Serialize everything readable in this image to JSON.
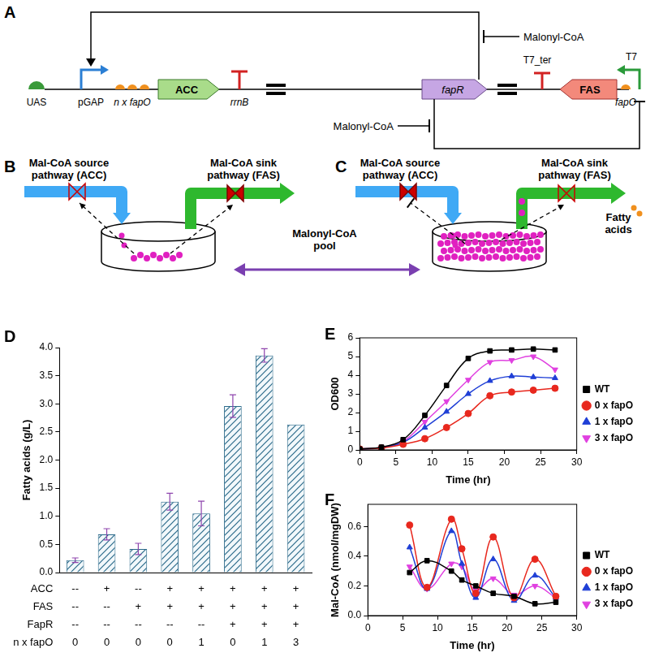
{
  "panels": {
    "A": {
      "label": "A",
      "parts": {
        "uas": "UAS",
        "promoter1": "pGAP",
        "operators": "n x fapO",
        "gene1": "ACC",
        "terminator1": "rrnB",
        "gene2": "fapR",
        "terminator2": "T7_ter",
        "gene3": "FAS",
        "operator2": "fapO",
        "promoter2": "T7"
      },
      "regulator_top": "Malonyl-CoA",
      "regulator_bottom": "Malonyl-CoA"
    },
    "B": {
      "label": "B",
      "source": "Mal-CoA source pathway (ACC)",
      "sink": "Mal-CoA sink pathway (FAS)"
    },
    "C": {
      "label": "C",
      "source": "Mal-CoA source pathway (ACC)",
      "sink": "Mal-CoA sink pathway (FAS)",
      "product": "Fatty acids"
    },
    "pool": "Malonyl-CoA pool"
  },
  "chart_data": [
    {
      "type": "bar",
      "panel_label": "D",
      "y_label": "Fatty acids (g/L)",
      "categories": [
        null,
        null,
        null,
        null,
        null,
        null,
        null,
        null
      ],
      "values": [
        0.22,
        0.68,
        0.42,
        1.26,
        1.05,
        2.96,
        3.86,
        2.63
      ],
      "errors": [
        0.04,
        0.1,
        0.1,
        0.15,
        0.22,
        0.2,
        0.12,
        null
      ],
      "color": "#2b6a8a",
      "ylim": [
        0,
        4
      ],
      "yticks": [
        {
          "value": 0,
          "label": "0.0"
        },
        {
          "value": 0.5,
          "label": "0.5"
        },
        {
          "value": 1,
          "label": "1.0"
        },
        {
          "value": 1.5,
          "label": "1.5"
        },
        {
          "value": 2,
          "label": "2.0"
        },
        {
          "value": 2.5,
          "label": "2.5"
        },
        {
          "value": 3,
          "label": "3.0"
        },
        {
          "value": 3.5,
          "label": "3.5"
        },
        {
          "value": 4,
          "label": "4.0"
        }
      ],
      "grid": false,
      "tick_labels": "y",
      "table": [
        {
          "label": "ACC",
          "values": [
            "--",
            "+",
            "--",
            "+",
            "+",
            "+",
            "+",
            "+"
          ]
        },
        {
          "label": "FAS",
          "values": [
            "--",
            "--",
            "+",
            "+",
            "+",
            "+",
            "+",
            "+"
          ]
        },
        {
          "label": "FapR",
          "values": [
            "--",
            "--",
            "--",
            "--",
            "--",
            "+",
            "+",
            "+"
          ]
        },
        {
          "label": "n x fapO",
          "values": [
            "0",
            "0",
            "0",
            "0",
            "1",
            "0",
            "1",
            "3"
          ]
        }
      ]
    },
    {
      "type": "line",
      "panel_label": "E",
      "x_label": "Time (hr)",
      "y_label": "OD600",
      "x": [
        0,
        3,
        6,
        9,
        12,
        15,
        18,
        21,
        24,
        27
      ],
      "series": [
        {
          "name": "WT",
          "color": "#000000",
          "marker": "square",
          "line_style": "solid",
          "values": [
            0.05,
            0.15,
            0.55,
            1.85,
            3.45,
            4.9,
            5.3,
            5.35,
            5.4,
            5.35
          ]
        },
        {
          "name": "0 x fapO",
          "color": "#e8281e",
          "marker": "circle",
          "line_style": "solid",
          "values": [
            0.05,
            0.1,
            0.3,
            0.6,
            1.2,
            1.95,
            2.9,
            3.1,
            3.2,
            3.3
          ]
        },
        {
          "name": "1 x fapO",
          "color": "#1f3fd6",
          "marker": "triangle",
          "line_style": "solid",
          "values": [
            0.05,
            0.12,
            0.4,
            1.2,
            2.05,
            3.0,
            3.7,
            3.95,
            3.9,
            3.85
          ]
        },
        {
          "name": "3 x fapO",
          "color": "#e040e0",
          "marker": "triangle_down",
          "line_style": "solid",
          "values": [
            0.05,
            0.12,
            0.45,
            1.5,
            2.6,
            3.75,
            4.7,
            4.8,
            5.0,
            4.3
          ]
        }
      ],
      "xlim": [
        0,
        30
      ],
      "xticks": [
        0,
        5,
        10,
        15,
        20,
        25,
        30
      ],
      "ylim": [
        0,
        6
      ],
      "yticks": [
        0,
        1,
        2,
        3,
        4,
        5,
        6
      ],
      "grid": false,
      "legend": "right"
    },
    {
      "type": "line",
      "panel_label": "F",
      "x_label": "Time (hr)",
      "y_label": "Mal-CoA (nmol/mgDW)",
      "x": [
        6,
        8.5,
        12,
        13.5,
        15.5,
        18,
        21,
        24,
        27
      ],
      "series": [
        {
          "name": "WT",
          "color": "#000000",
          "marker": "square",
          "line_style": "solid",
          "values": [
            0.29,
            0.37,
            0.3,
            0.24,
            0.2,
            0.15,
            0.13,
            0.08,
            0.09
          ]
        },
        {
          "name": "0 x fapO",
          "color": "#e8281e",
          "marker": "circle",
          "line_style": "solid",
          "values": [
            0.61,
            0.19,
            0.65,
            0.45,
            0.15,
            0.53,
            0.12,
            0.38,
            0.13
          ]
        },
        {
          "name": "1 x fapO",
          "color": "#1f3fd6",
          "marker": "triangle",
          "line_style": "solid",
          "values": [
            0.46,
            0.18,
            0.57,
            0.35,
            0.12,
            0.38,
            0.1,
            0.27,
            0.12
          ]
        },
        {
          "name": "3 x fapO",
          "color": "#e040e0",
          "marker": "triangle_down",
          "line_style": "solid",
          "values": [
            0.33,
            0.18,
            0.35,
            0.33,
            0.17,
            0.25,
            0.14,
            0.2,
            0.12
          ]
        }
      ],
      "xlim": [
        0,
        30
      ],
      "xticks": [
        0,
        5,
        10,
        15,
        20,
        25,
        30
      ],
      "ylim": [
        0,
        0.75
      ],
      "yticks": [
        {
          "value": 0,
          "label": "0.0"
        },
        {
          "value": 0.2,
          "label": "0.2"
        },
        {
          "value": 0.4,
          "label": "0.4"
        },
        {
          "value": 0.6,
          "label": "0.6"
        }
      ],
      "grid": false,
      "legend": "right"
    }
  ]
}
